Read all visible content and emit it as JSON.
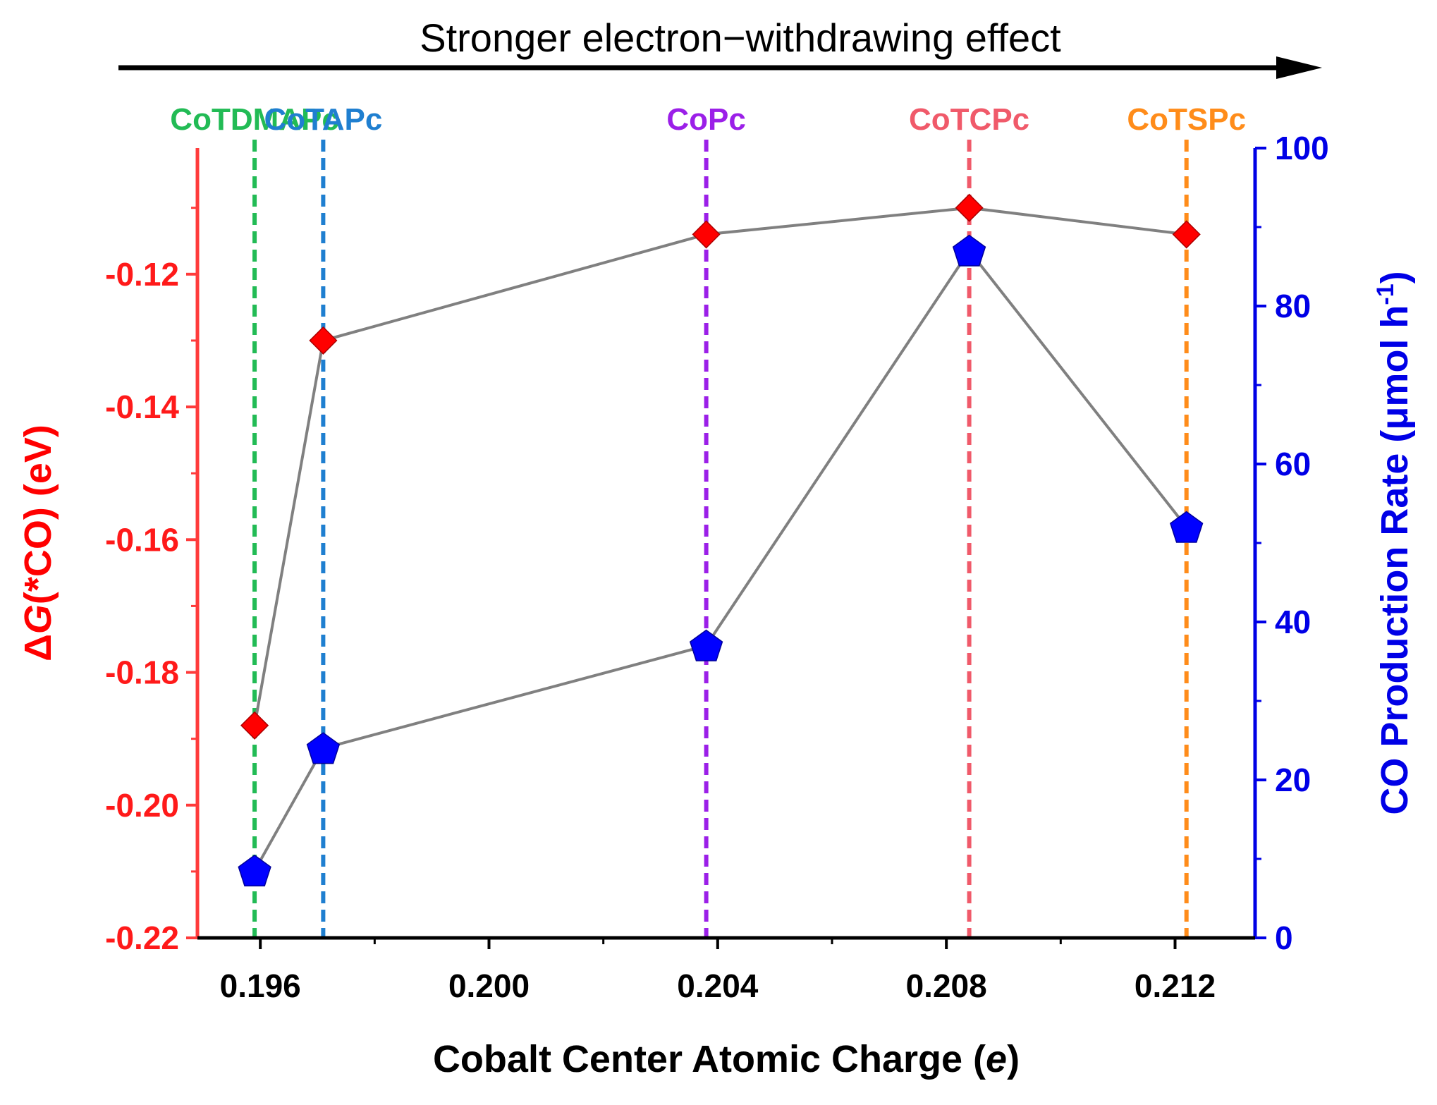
{
  "chart_data": {
    "type": "line",
    "title": "",
    "annotation": {
      "text": "Stronger electron−withdrawing effect",
      "direction": "left-to-right arrow"
    },
    "xlabel_parts": [
      "Cobalt Center Atomic Charge (",
      "e",
      ")"
    ],
    "ylabel_left_parts": [
      "Δ",
      "G",
      "(*CO) (eV)"
    ],
    "ylabel_right_parts": [
      "CO Production Rate (μmol h",
      "-1",
      ")"
    ],
    "xlim": [
      0.1949,
      0.2134
    ],
    "ylim_left": [
      -0.22,
      -0.101
    ],
    "ylim_right": [
      0,
      100
    ],
    "x_ticks": [
      {
        "value": 0.196,
        "label": "0.196"
      },
      {
        "value": 0.2,
        "label": "0.200"
      },
      {
        "value": 0.204,
        "label": "0.204"
      },
      {
        "value": 0.208,
        "label": "0.208"
      },
      {
        "value": 0.212,
        "label": "0.212"
      }
    ],
    "x_minor_ticks": [
      0.198,
      0.202,
      0.206,
      0.21
    ],
    "y_left_ticks": [
      {
        "value": -0.12,
        "label": "-0.12"
      },
      {
        "value": -0.14,
        "label": "-0.14"
      },
      {
        "value": -0.16,
        "label": "-0.16"
      },
      {
        "value": -0.18,
        "label": "-0.18"
      },
      {
        "value": -0.2,
        "label": "-0.20"
      },
      {
        "value": -0.22,
        "label": "-0.22"
      }
    ],
    "y_left_minor_ticks": [
      -0.11,
      -0.13,
      -0.15,
      -0.17,
      -0.19,
      -0.21
    ],
    "y_right_ticks": [
      {
        "value": 0,
        "label": "0"
      },
      {
        "value": 20,
        "label": "20"
      },
      {
        "value": 40,
        "label": "40"
      },
      {
        "value": 60,
        "label": "60"
      },
      {
        "value": 80,
        "label": "80"
      },
      {
        "value": 100,
        "label": "100"
      }
    ],
    "y_right_minor_ticks": [
      10,
      30,
      50,
      70,
      90
    ],
    "categories": [
      {
        "name": "CoTDMAPc",
        "x": 0.1959,
        "color": "#22bb55"
      },
      {
        "name": "CoTAPc",
        "x": 0.1971,
        "color": "#1f7fd0"
      },
      {
        "name": "CoPc",
        "x": 0.2038,
        "color": "#9b1fe8"
      },
      {
        "name": "CoTCPc",
        "x": 0.2084,
        "color": "#f05a6a"
      },
      {
        "name": "CoTSPc",
        "x": 0.2122,
        "color": "#ff8c1a"
      }
    ],
    "series": [
      {
        "name": "ΔG(*CO)",
        "axis": "left",
        "marker": "diamond",
        "color": "#ff0000",
        "x": [
          0.1959,
          0.1971,
          0.2038,
          0.2084,
          0.2122
        ],
        "values": [
          -0.188,
          -0.13,
          -0.114,
          -0.11,
          -0.114
        ]
      },
      {
        "name": "CO Production Rate",
        "axis": "right",
        "marker": "pentagon",
        "color": "#0000ff",
        "x": [
          0.1959,
          0.1971,
          0.2038,
          0.2084,
          0.2122
        ],
        "values": [
          8.5,
          24,
          37,
          87,
          52
        ]
      }
    ],
    "colors": {
      "left_axis": "#ff3b3b",
      "right_axis": "#0000e6",
      "connector_line": "#808080",
      "text": "#000000"
    }
  }
}
